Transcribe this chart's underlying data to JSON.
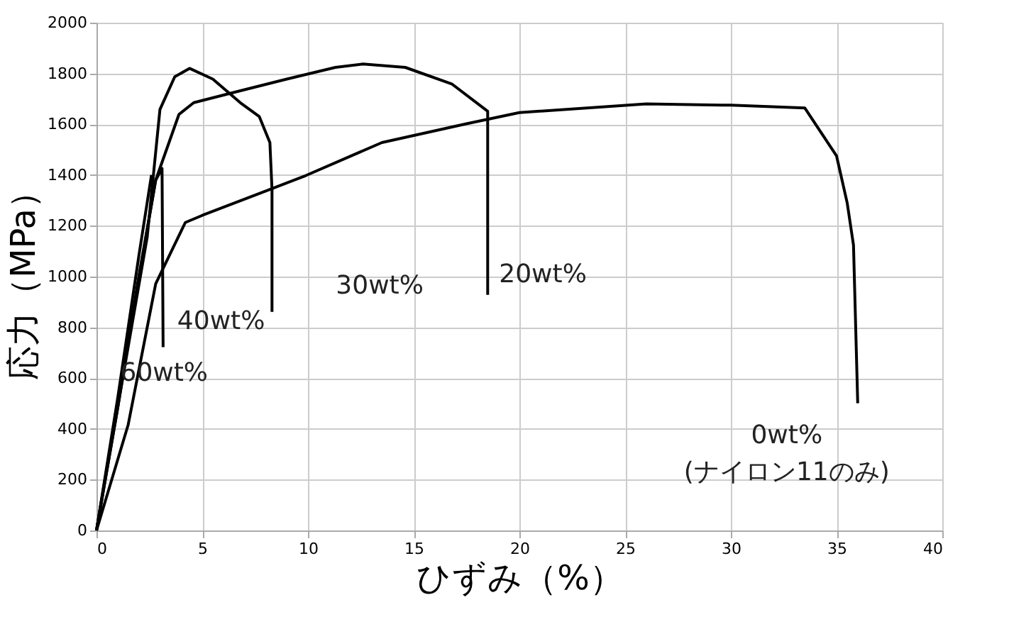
{
  "chart_data": {
    "type": "line",
    "xlabel": "ひずみ（%）",
    "ylabel": "応力（MPa）",
    "xlim": [
      0,
      40
    ],
    "xticks": [
      0,
      5,
      10,
      15,
      20,
      25,
      30,
      35,
      40
    ],
    "ylim": [
      0,
      2000
    ],
    "yticks": [
      0,
      200,
      400,
      600,
      800,
      1000,
      1200,
      1400,
      1600,
      1800,
      2000
    ],
    "grid": true,
    "legend": false,
    "marker": "none",
    "line_style": "solid",
    "series": [
      {
        "name": "0wt%\n(ナイロン11のみ)",
        "color": "#000000",
        "x": [
          0,
          1.5,
          2.8,
          4.2,
          5.0,
          8.2,
          9.9,
          13.5,
          17.5,
          20,
          26,
          30,
          33.5,
          35,
          35.5,
          35.8,
          36
        ],
        "values": [
          0,
          417,
          972,
          1213,
          1241,
          1343,
          1398,
          1528,
          1602,
          1646,
          1680,
          1675,
          1664,
          1475,
          1291,
          1124,
          501
        ]
      },
      {
        "name": "20wt%",
        "color": "#000000",
        "x": [
          0,
          1.4,
          2.8,
          3.9,
          4.6,
          6.8,
          9.0,
          11.3,
          12.6,
          14.6,
          16.8,
          18.5,
          18.5
        ],
        "values": [
          0,
          700,
          1380,
          1639,
          1685,
          1732,
          1778,
          1824,
          1837,
          1824,
          1759,
          1651,
          928
        ]
      },
      {
        "name": "30wt%",
        "color": "#000000",
        "x": [
          0,
          1.2,
          2.4,
          3.0,
          3.7,
          4.4,
          5.5,
          6.8,
          7.7,
          8.2,
          8.3,
          8.3
        ],
        "values": [
          0,
          580,
          1157,
          1658,
          1787,
          1820,
          1778,
          1685,
          1630,
          1528,
          1343,
          861
        ]
      },
      {
        "name": "40wt%",
        "color": "#000000",
        "x": [
          0,
          1.0,
          2.0,
          2.8,
          3.1,
          3.15
        ],
        "values": [
          0,
          480,
          1000,
          1380,
          1426,
          722
        ]
      },
      {
        "name": "60wt%",
        "color": "#000000",
        "x": [
          0,
          1.0,
          2.0,
          2.6
        ],
        "values": [
          0,
          520,
          1080,
          1400
        ]
      }
    ]
  }
}
